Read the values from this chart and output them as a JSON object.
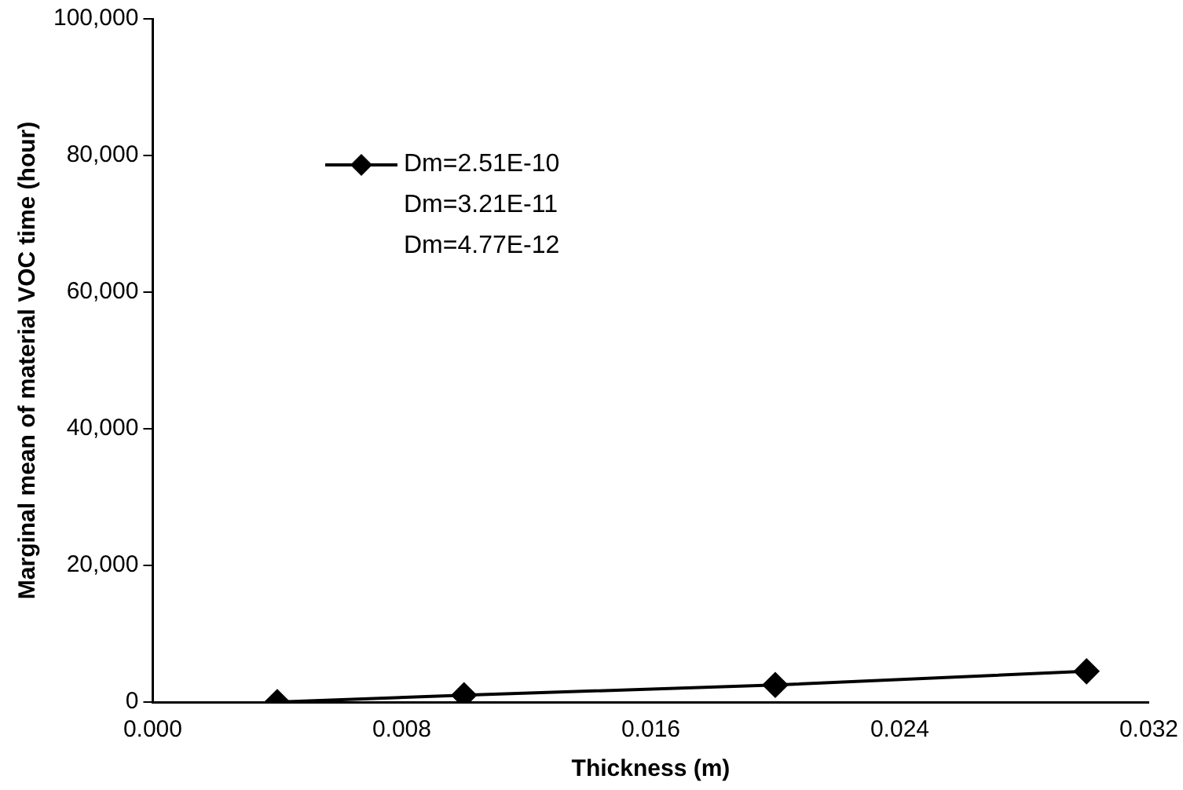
{
  "chart_data": {
    "type": "line",
    "xlabel": "Thickness (m)",
    "ylabel": "Marginal mean of material VOC time (hour)",
    "xlim": [
      0,
      0.032
    ],
    "xticks": [
      {
        "value": 0,
        "label": "0.000"
      },
      {
        "value": 0.008,
        "label": "0.008"
      },
      {
        "value": 0.016,
        "label": "0.016"
      },
      {
        "value": 0.024,
        "label": "0.024"
      },
      {
        "value": 0.032,
        "label": "0.032"
      }
    ],
    "ylim": [
      0,
      100000
    ],
    "yticks": [
      {
        "value": 0,
        "label": "0"
      },
      {
        "value": 20000,
        "label": "20,000"
      },
      {
        "value": 40000,
        "label": "40,000"
      },
      {
        "value": 60000,
        "label": "60,000"
      },
      {
        "value": 80000,
        "label": "80,000"
      },
      {
        "value": 100000,
        "label": "100,000"
      }
    ],
    "series": [
      {
        "name": "Dm=2.51E-10",
        "color": "#000000",
        "x": [
          0.004,
          0.01,
          0.02,
          0.03
        ],
        "values": [
          0,
          1000,
          2500,
          4500
        ],
        "marker": "diamond"
      },
      {
        "name": "Dm=3.21E-11"
      },
      {
        "name": "Dm=4.77E-12"
      }
    ],
    "legend": "top left",
    "grid": false
  }
}
